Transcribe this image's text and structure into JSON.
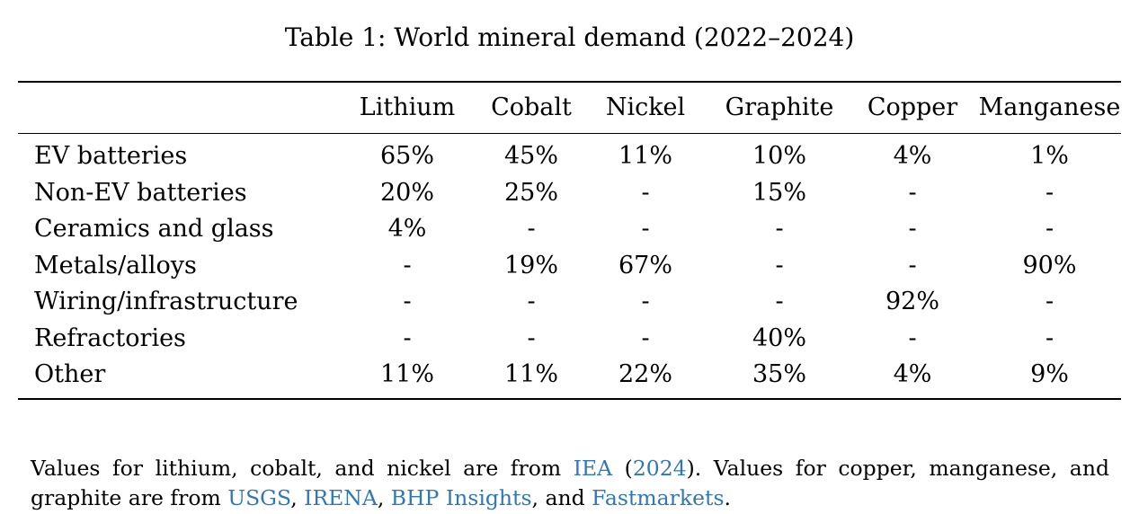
{
  "caption": "Table 1: World mineral demand (2022–2024)",
  "table": {
    "columns": [
      "",
      "Lithium",
      "Cobalt",
      "Nickel",
      "Graphite",
      "Copper",
      "Manganese"
    ],
    "rows": [
      {
        "label": "EV batteries",
        "values": [
          "65%",
          "45%",
          "11%",
          "10%",
          "4%",
          "1%"
        ]
      },
      {
        "label": "Non-EV batteries",
        "values": [
          "20%",
          "25%",
          "-",
          "15%",
          "-",
          "-"
        ]
      },
      {
        "label": "Ceramics and glass",
        "values": [
          "4%",
          "-",
          "-",
          "-",
          "-",
          "-"
        ]
      },
      {
        "label": "Metals/alloys",
        "values": [
          "-",
          "19%",
          "67%",
          "-",
          "-",
          "90%"
        ]
      },
      {
        "label": "Wiring/infrastructure",
        "values": [
          "-",
          "-",
          "-",
          "-",
          "92%",
          "-"
        ]
      },
      {
        "label": "Refractories",
        "values": [
          "-",
          "-",
          "-",
          "40%",
          "-",
          "-"
        ]
      },
      {
        "label": "Other",
        "values": [
          "11%",
          "11%",
          "22%",
          "35%",
          "4%",
          "9%"
        ]
      }
    ]
  },
  "note": {
    "t1": "Values for lithium, cobalt, and nickel are from ",
    "iea": "IEA",
    "t2": " (",
    "year": "2024",
    "t3": ").  Values for copper, manganese, and graphite are from ",
    "usgs": "USGS",
    "t4": ", ",
    "irena": "IRENA",
    "t5": ", ",
    "bhp": "BHP Insights",
    "t6": ", and ",
    "fastmarkets": "Fastmarkets",
    "t7": "."
  },
  "colors": {
    "link": "#2f78b8",
    "text": "#000000",
    "background": "#ffffff"
  }
}
